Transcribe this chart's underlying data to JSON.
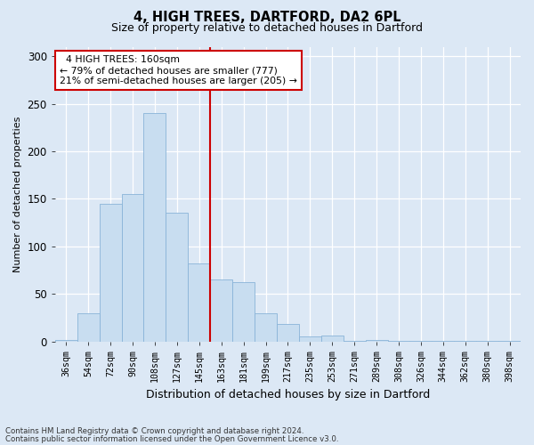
{
  "title": "4, HIGH TREES, DARTFORD, DA2 6PL",
  "subtitle": "Size of property relative to detached houses in Dartford",
  "xlabel": "Distribution of detached houses by size in Dartford",
  "ylabel": "Number of detached properties",
  "bar_color": "#c8ddf0",
  "bar_edge_color": "#8ab4d8",
  "vline_color": "#cc0000",
  "annotation_title": "4 HIGH TREES: 160sqm",
  "annotation_line1": "← 79% of detached houses are smaller (777)",
  "annotation_line2": "21% of semi-detached houses are larger (205) →",
  "annotation_box_color": "#ffffff",
  "annotation_box_edge": "#cc0000",
  "footnote1": "Contains HM Land Registry data © Crown copyright and database right 2024.",
  "footnote2": "Contains public sector information licensed under the Open Government Licence v3.0.",
  "background_color": "#dce8f5",
  "plot_background": "#dce8f5",
  "categories": [
    "36sqm",
    "54sqm",
    "72sqm",
    "90sqm",
    "108sqm",
    "127sqm",
    "145sqm",
    "163sqm",
    "181sqm",
    "199sqm",
    "217sqm",
    "235sqm",
    "253sqm",
    "271sqm",
    "289sqm",
    "308sqm",
    "326sqm",
    "344sqm",
    "362sqm",
    "380sqm",
    "398sqm"
  ],
  "values": [
    2,
    30,
    145,
    155,
    240,
    135,
    82,
    65,
    62,
    30,
    18,
    5,
    6,
    1,
    2,
    1,
    1,
    1,
    1,
    1,
    1
  ],
  "vline_index": 7,
  "ylim": [
    0,
    310
  ],
  "yticks": [
    0,
    50,
    100,
    150,
    200,
    250,
    300
  ]
}
